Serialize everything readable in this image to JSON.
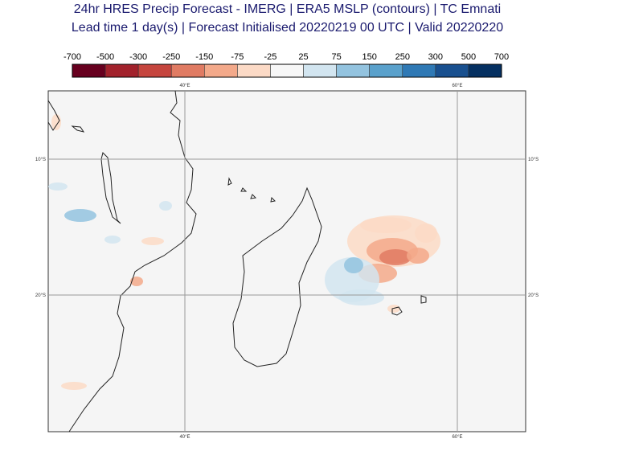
{
  "title": {
    "line1": "24hr HRES Precip Forecast - IMERG | ERA5 MSLP (contours) | TC Emnati",
    "line2": "Lead time 1 day(s) | Forecast Initialised 20220219 00 UTC | Valid 20220220"
  },
  "colorbar": {
    "ticks": [
      "-700",
      "-500",
      "-300",
      "-250",
      "-150",
      "-75",
      "-25",
      "25",
      "75",
      "150",
      "250",
      "300",
      "500",
      "700"
    ],
    "colors": [
      "#67001f",
      "#a2222c",
      "#c5453e",
      "#e07b63",
      "#f3a98a",
      "#fcdac6",
      "#f7f7f7",
      "#d2e5f0",
      "#93c3df",
      "#5aa1cc",
      "#2f79b5",
      "#19508f",
      "#053061"
    ]
  },
  "map": {
    "lon_labels": [
      "40°E",
      "60°E"
    ],
    "lat_labels": [
      "10°S",
      "20°S"
    ],
    "background": "#f5f5f5",
    "coast_color": "#222222",
    "grid_color": "#999999"
  }
}
